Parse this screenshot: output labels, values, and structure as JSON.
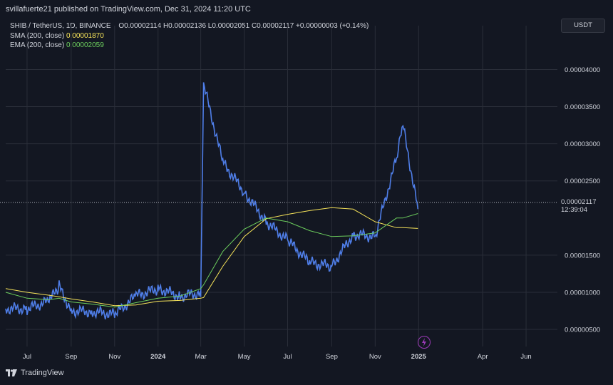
{
  "header": {
    "publisher_line": "svillafuerte21 published on TradingView.com, Dec 31, 2024 11:20 UTC"
  },
  "legend": {
    "symbol": "SHIB / TetherUS, 1D, BINANCE",
    "ohlc": "O0.00002114  H0.00002136  L0.00002051  C0.00002117  +0.00000003 (+0.14%)",
    "sma_label": "SMA (200, close)",
    "sma_value": "0.00001870",
    "ema_label": "EMA (200, close)",
    "ema_value": "0.00002059"
  },
  "currency_button": "USDT",
  "price_axis": {
    "ticks": [
      "0.00004000",
      "0.00003500",
      "0.00003000",
      "0.00002500",
      "0.00001500",
      "0.00001000",
      "0.00000500"
    ],
    "current_price": "0.00002117",
    "countdown": "12:39:04"
  },
  "time_axis": {
    "ticks": [
      "Jul",
      "Sep",
      "Nov",
      "2024",
      "Mar",
      "May",
      "Jul",
      "Sep",
      "Nov",
      "2025",
      "Apr",
      "Jun"
    ]
  },
  "footer": {
    "brand": "TradingView"
  },
  "colors": {
    "background": "#131722",
    "candles": "#4f7ee8",
    "sma": "#f7e45a",
    "ema": "#6ccd5d",
    "grid": "#2a2e39",
    "current_price_line": "#b2b5be"
  },
  "chart_data": {
    "type": "line",
    "title": "SHIB / TetherUS, 1D, BINANCE",
    "xlabel": "",
    "ylabel": "",
    "ylim": [
      2.7e-06,
      4.59e-05
    ],
    "grid": true,
    "x": [
      "2023-06-01",
      "2023-07-01",
      "2023-08-01",
      "2023-08-15",
      "2023-09-01",
      "2023-10-01",
      "2023-11-01",
      "2023-12-01",
      "2024-01-01",
      "2024-02-01",
      "2024-03-01",
      "2024-03-05",
      "2024-04-01",
      "2024-05-01",
      "2024-06-01",
      "2024-07-01",
      "2024-08-01",
      "2024-09-01",
      "2024-10-01",
      "2024-11-01",
      "2024-12-01",
      "2024-12-10",
      "2024-12-31"
    ],
    "series": [
      {
        "name": "SHIB / TetherUS",
        "values": [
          7.8e-06,
          7.8e-06,
          8.8e-06,
          1.08e-05,
          7.5e-06,
          7.4e-06,
          7e-06,
          9.5e-06,
          1.05e-05,
          9.5e-06,
          9.9e-06,
          3.8e-05,
          2.75e-05,
          2.35e-05,
          1.95e-05,
          1.7e-05,
          1.4e-05,
          1.35e-05,
          1.78e-05,
          1.75e-05,
          2.8e-05,
          3.25e-05,
          2.12e-05
        ]
      },
      {
        "name": "SMA (200, close)",
        "values": [
          1.05e-05,
          1e-05,
          9.6e-06,
          9.4e-06,
          9.1e-06,
          8.7e-06,
          8.2e-06,
          8.3e-06,
          8.8e-06,
          8.9e-06,
          9.2e-06,
          9.3e-06,
          1.35e-05,
          1.75e-05,
          1.99e-05,
          2.05e-05,
          2.1e-05,
          2.14e-05,
          2.12e-05,
          1.95e-05,
          1.87e-05,
          1.87e-05,
          1.86e-05
        ]
      },
      {
        "name": "EMA (200, close)",
        "values": [
          1e-05,
          9.2e-06,
          9e-06,
          9.2e-06,
          8.7e-06,
          8.4e-06,
          8e-06,
          8.6e-06,
          9.2e-06,
          9.5e-06,
          1.05e-05,
          1.1e-05,
          1.55e-05,
          1.85e-05,
          2e-05,
          1.95e-05,
          1.83e-05,
          1.75e-05,
          1.76e-05,
          1.8e-05,
          2e-05,
          2e-05,
          2.06e-05
        ]
      }
    ]
  }
}
